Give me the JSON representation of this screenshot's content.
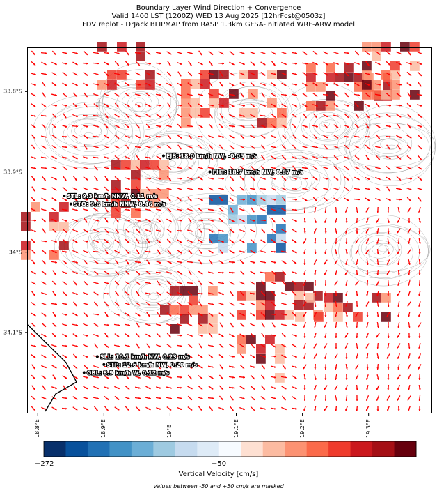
{
  "title": {
    "line1": "Boundary Layer Wind Direction + Convergence",
    "line2": "Valid 1400 LST (1200Z) WED 13 Aug 2025 [12hrFcst@0503z]",
    "line3": "FDV replot - DrJack BLIPMAP from RASP 1.3km GFSA-Initiated WRF-ARW model"
  },
  "axes": {
    "y_ticks": [
      {
        "label": "33.8°S",
        "value": -33.8
      },
      {
        "label": "33.9°S",
        "value": -33.9
      },
      {
        "label": "34°S",
        "value": -34.0
      },
      {
        "label": "34.1°S",
        "value": -34.1
      }
    ],
    "x_ticks": [
      {
        "label": "18.8°E",
        "value": 18.8
      },
      {
        "label": "18.9°E",
        "value": 18.9
      },
      {
        "label": "19°E",
        "value": 19.0
      },
      {
        "label": "19.1°E",
        "value": 19.1
      },
      {
        "label": "19.2°E",
        "value": 19.2
      },
      {
        "label": "19.3°E",
        "value": 19.3
      }
    ]
  },
  "stations": [
    {
      "label": "EJB: 18.0 km/h NW, -0.05 m/s",
      "lon": 18.99,
      "lat": -33.88
    },
    {
      "label": "FHT: 18.7 km/h NW, 0.87 m/s",
      "lon": 19.06,
      "lat": -33.9
    },
    {
      "label": "STL: 9.3 km/h NNW, 0.11 m/s",
      "lon": 18.84,
      "lat": -33.93
    },
    {
      "label": "STO: 9.6 km/h NNW, 0.46 m/s",
      "lon": 18.85,
      "lat": -33.94
    },
    {
      "label": "SLL: 10.1 km/h NW, 0.23 m/s",
      "lon": 18.89,
      "lat": -34.13
    },
    {
      "label": "STP: 12.6 km/h NW, 0.20 m/s",
      "lon": 18.9,
      "lat": -34.14
    },
    {
      "label": "GBL: 8.9 km/h W, 0.12 m/s",
      "lon": 18.87,
      "lat": -34.15
    }
  ],
  "colorbar": {
    "label": "Vertical Velocity [cm/s]",
    "tick_min": "−272",
    "tick_mid": "−50",
    "colors": [
      "#08306b",
      "#08519c",
      "#2171b5",
      "#4292c6",
      "#6baed6",
      "#9ecae1",
      "#c6dbef",
      "#deebf7",
      "#f7fbff",
      "#fee0d2",
      "#fcbba1",
      "#fc9272",
      "#fb6a4a",
      "#ef3b2c",
      "#cb181d",
      "#a50f15",
      "#67000d"
    ]
  },
  "footnote": "Values between -50 and +50 cm/s are masked",
  "colors": {
    "arrow": "#ff0000",
    "contour": "#555555",
    "coast": "#000000"
  }
}
